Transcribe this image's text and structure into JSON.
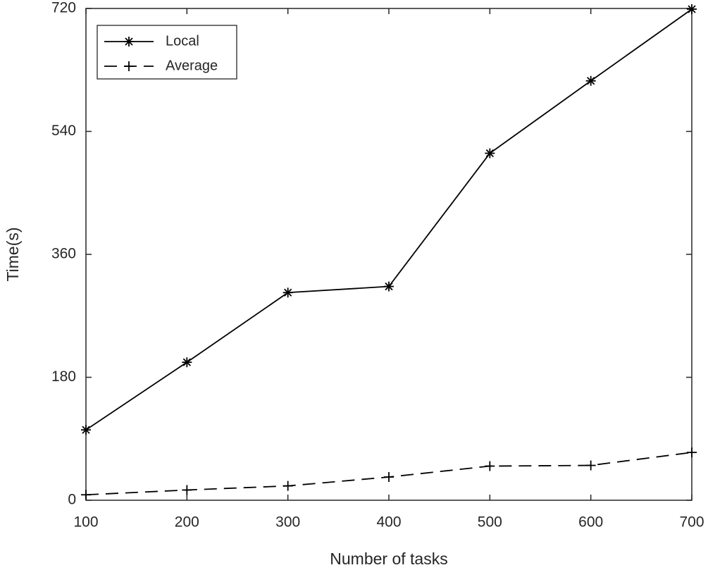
{
  "chart_data": {
    "type": "line",
    "x_label": "Number of tasks",
    "y_label": "Time(s)",
    "x": [
      100,
      200,
      300,
      400,
      500,
      600,
      700
    ],
    "series": [
      {
        "name": "Local",
        "color": "#000000",
        "line_style": "solid",
        "marker": "asterisk",
        "values": [
          103,
          202,
          304,
          313,
          508,
          614,
          719
        ]
      },
      {
        "name": "Average",
        "color": "#000000",
        "line_style": "dashed",
        "marker": "plus",
        "values": [
          8,
          15,
          21,
          34,
          50,
          51,
          70
        ]
      }
    ],
    "xlim": [
      100,
      700
    ],
    "xticks": [
      100,
      200,
      300,
      400,
      500,
      600,
      700
    ],
    "ylim": [
      0,
      720
    ],
    "yticks": [
      0,
      180,
      360,
      540,
      720
    ],
    "legend": "upper left",
    "grid": false
  }
}
